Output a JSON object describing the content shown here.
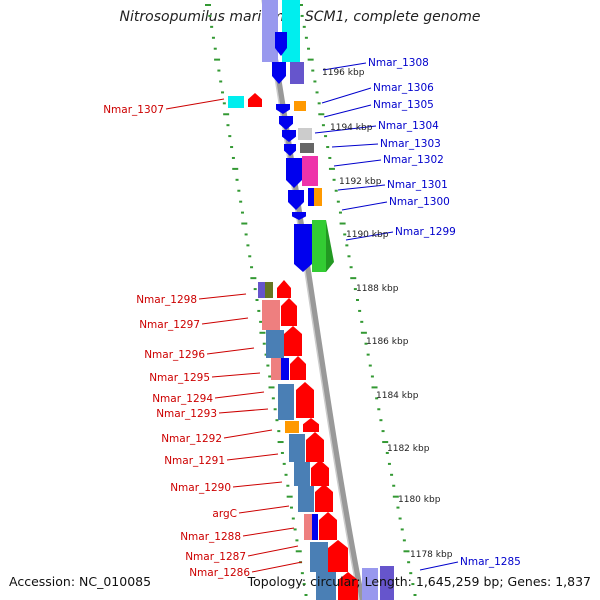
{
  "title": "Nitrosopumilus maritimus SCM1, complete genome",
  "accession": "Accession: NC_010085",
  "topology": "Topology: circular; Length: 1,645,259 bp; Genes: 1,837",
  "colors": {
    "forward_label": "#0000cc",
    "reverse_label": "#cc0000",
    "backbone": "#999999",
    "tick_ring": "#339933",
    "gene_blue": "#0000ee",
    "gene_red": "#ff0000",
    "cds_steel": "#4a7fb5",
    "cds_pink": "#ee7f7f",
    "cds_cyan": "#00eeee",
    "cds_purple": "#6655cc",
    "cds_orange": "#ff9900",
    "cds_green": "#33cc33",
    "cds_magenta": "#ee33aa",
    "cds_olive": "#667722"
  },
  "scale_labels": [
    "1196 kbp",
    "1194 kbp",
    "1192 kbp",
    "1190 kbp",
    "1188 kbp",
    "1186 kbp",
    "1184 kbp",
    "1182 kbp",
    "1180 kbp",
    "1178 kbp"
  ],
  "forward_genes": [
    "Nmar_1308",
    "Nmar_1306",
    "Nmar_1305",
    "Nmar_1304",
    "Nmar_1303",
    "Nmar_1302",
    "Nmar_1301",
    "Nmar_1300",
    "Nmar_1299",
    "Nmar_1285"
  ],
  "reverse_genes": [
    "Nmar_1307",
    "Nmar_1298",
    "Nmar_1297",
    "Nmar_1296",
    "Nmar_1295",
    "Nmar_1294",
    "Nmar_1293",
    "Nmar_1292",
    "Nmar_1291",
    "Nmar_1290",
    "argC",
    "Nmar_1288",
    "Nmar_1287",
    "Nmar_1286"
  ]
}
